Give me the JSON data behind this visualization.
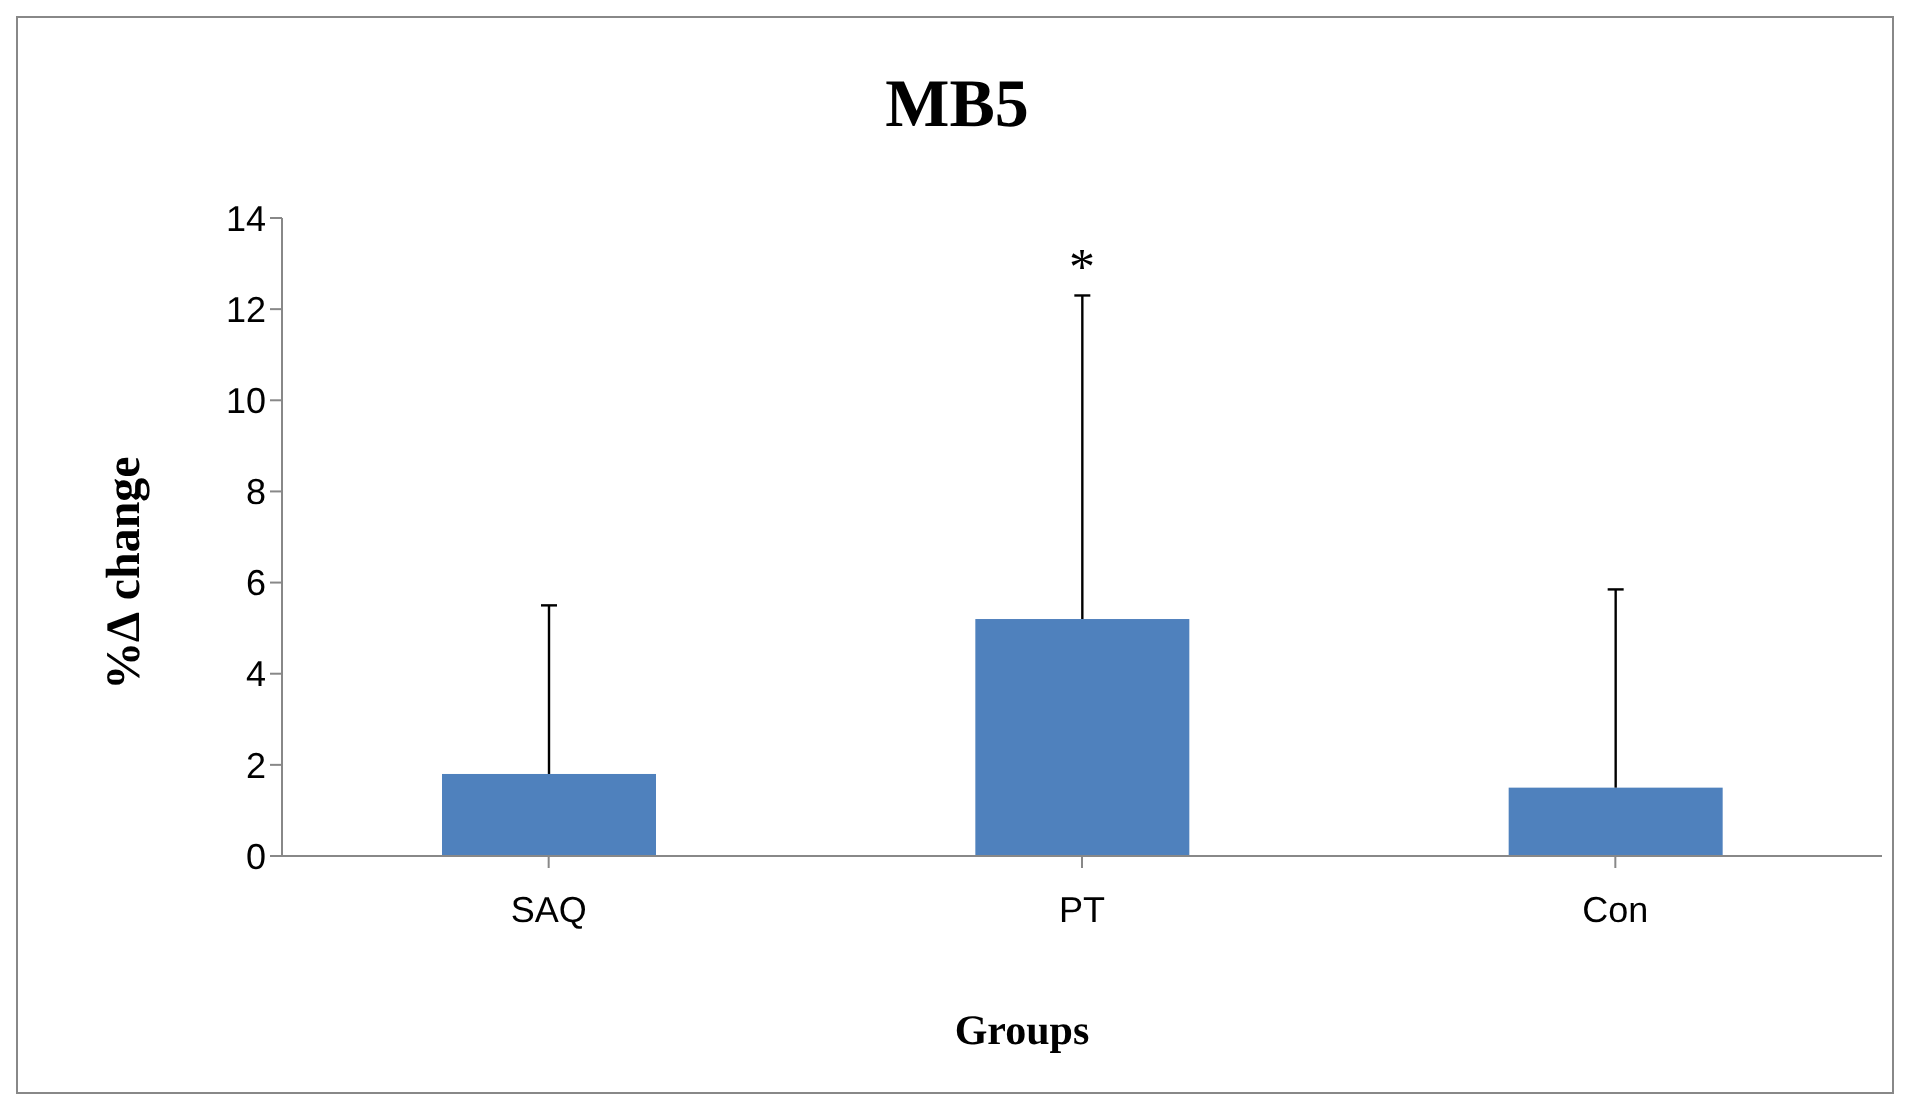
{
  "chart_data": {
    "type": "bar",
    "title": "MB5",
    "xlabel": "Groups",
    "ylabel": "%∆ change",
    "categories": [
      "SAQ",
      "PT",
      "Con"
    ],
    "values": [
      1.8,
      5.2,
      1.5
    ],
    "color": "#4f81bd",
    "errors": [
      [
        1.8,
        5.5
      ],
      [
        5.2,
        12.3
      ],
      [
        1.5,
        5.85
      ]
    ],
    "ylim": [
      0,
      14
    ],
    "yticks": [
      0,
      2,
      4,
      6,
      8,
      10,
      12,
      14
    ],
    "annotations": [
      "*"
    ]
  }
}
